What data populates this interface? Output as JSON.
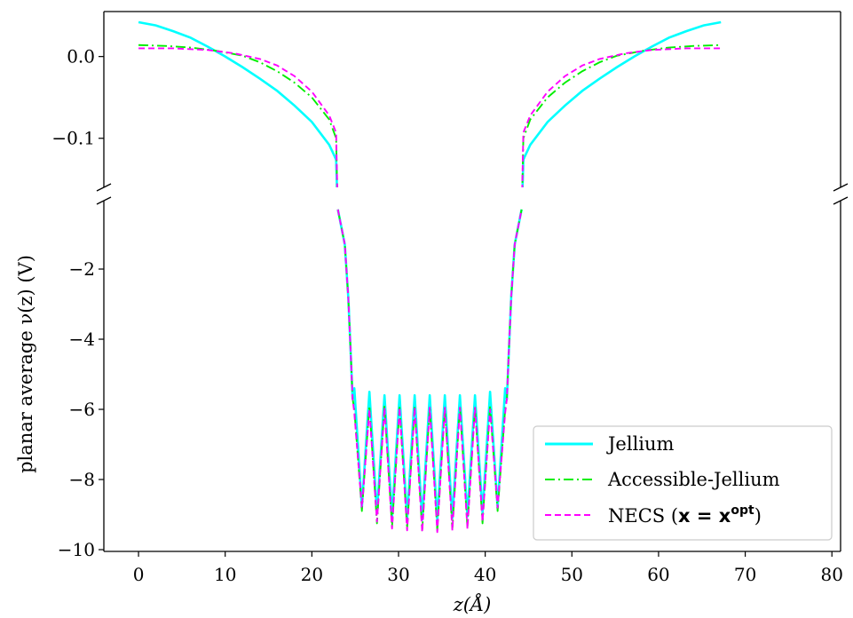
{
  "chart_data": {
    "type": "line",
    "xlabel": "z(Å)",
    "ylabel": "planar average ν(z) (V)",
    "xlim": [
      -4,
      81
    ],
    "broken_y_axis": true,
    "top_panel": {
      "ylim": [
        -0.16,
        0.055
      ],
      "yticks": [
        0.0,
        -0.1
      ],
      "ytick_labels": [
        "0.0",
        "−0.1"
      ]
    },
    "bottom_panel": {
      "ylim": [
        -10.05,
        -0.05
      ],
      "yticks": [
        -2,
        -4,
        -6,
        -8,
        -10
      ],
      "ytick_labels": [
        "−2",
        "−4",
        "−6",
        "−8",
        "−10"
      ]
    },
    "xticks": [
      0,
      10,
      20,
      30,
      40,
      50,
      60,
      70,
      80
    ],
    "xtick_labels": [
      "0",
      "10",
      "20",
      "30",
      "40",
      "50",
      "60",
      "70",
      "80"
    ],
    "legend_position": "lower-right",
    "legend_label_parts": [
      [
        "Jellium",
        ""
      ],
      [
        "Accessible-Jellium",
        ""
      ],
      [
        "NECS (",
        "x = x",
        "opt",
        ")"
      ]
    ],
    "series": [
      {
        "name": "Jellium",
        "color": "#00ffff",
        "style": "solid",
        "outer_points": [
          [
            0,
            0.042
          ],
          [
            2,
            0.038
          ],
          [
            4,
            0.031
          ],
          [
            6,
            0.023
          ],
          [
            8,
            0.012
          ],
          [
            10,
            0.0
          ],
          [
            12,
            -0.013
          ],
          [
            14,
            -0.027
          ],
          [
            16,
            -0.042
          ],
          [
            18,
            -0.06
          ],
          [
            20,
            -0.08
          ],
          [
            22,
            -0.108
          ],
          [
            22.8,
            -0.126
          ],
          [
            23.0,
            -0.2
          ]
        ],
        "oscillation": {
          "top_peaks": [
            -5.4,
            -5.5,
            -5.6,
            -5.6,
            -5.6,
            -5.6,
            -5.6,
            -5.6,
            -5.6,
            -5.5,
            -5.4
          ],
          "minima": [
            -8.8,
            -8.95,
            -9.05,
            -9.1,
            -9.15,
            -9.15,
            -9.1,
            -9.05,
            -8.95,
            -8.8
          ]
        }
      },
      {
        "name": "Accessible-Jellium",
        "color": "#00ee00",
        "style": "dashdot",
        "outer_points": [
          [
            0,
            0.014
          ],
          [
            3,
            0.013
          ],
          [
            6,
            0.011
          ],
          [
            9,
            0.007
          ],
          [
            12,
            0.001
          ],
          [
            14,
            -0.007
          ],
          [
            16,
            -0.018
          ],
          [
            18,
            -0.032
          ],
          [
            20,
            -0.05
          ],
          [
            22,
            -0.077
          ],
          [
            22.8,
            -0.1
          ],
          [
            23.0,
            -0.2
          ]
        ],
        "oscillation": {
          "top_peaks": [
            -6.0,
            -5.9,
            -5.9,
            -5.95,
            -5.95,
            -5.95,
            -5.95,
            -5.9,
            -5.9,
            -5.9,
            -6.0
          ],
          "minima": [
            -8.9,
            -9.25,
            -9.35,
            -9.4,
            -9.45,
            -9.45,
            -9.4,
            -9.35,
            -9.25,
            -8.9
          ]
        }
      },
      {
        "name": "NECS (x = xopt)",
        "color": "#ff00ff",
        "style": "dashed",
        "outer_points": [
          [
            0,
            0.01
          ],
          [
            4,
            0.01
          ],
          [
            8,
            0.008
          ],
          [
            11,
            0.004
          ],
          [
            14,
            -0.003
          ],
          [
            16,
            -0.011
          ],
          [
            18,
            -0.024
          ],
          [
            20,
            -0.043
          ],
          [
            22,
            -0.072
          ],
          [
            22.8,
            -0.093
          ],
          [
            23.0,
            -0.2
          ]
        ],
        "oscillation": {
          "top_peaks": [
            -6.1,
            -6.0,
            -5.95,
            -5.95,
            -5.95,
            -5.95,
            -5.95,
            -5.95,
            -5.95,
            -6.0,
            -6.1
          ],
          "minima": [
            -8.8,
            -9.2,
            -9.4,
            -9.45,
            -9.5,
            -9.5,
            -9.45,
            -9.4,
            -9.2,
            -8.8
          ]
        }
      }
    ]
  }
}
